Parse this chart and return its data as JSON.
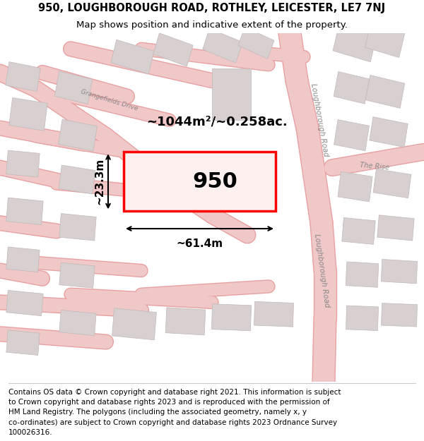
{
  "title_line1": "950, LOUGHBOROUGH ROAD, ROTHLEY, LEICESTER, LE7 7NJ",
  "title_line2": "Map shows position and indicative extent of the property.",
  "footer_text": "Contains OS data © Crown copyright and database right 2021. This information is subject to Crown copyright and database rights 2023 and is reproduced with the permission of HM Land Registry. The polygons (including the associated geometry, namely x, y co-ordinates) are subject to Crown copyright and database rights 2023 Ordnance Survey 100026316.",
  "background_color": "#f5f0f0",
  "map_background": "#faf7f7",
  "road_color": "#f0c8c8",
  "road_border_color": "#e8a0a0",
  "building_fill": "#d8d0d0",
  "building_border": "#c0b8b8",
  "highlight_color": "#ff0000",
  "highlight_fill": "#fff0f0",
  "area_text": "~1044m²/~0.258ac.",
  "width_text": "~61.4m",
  "height_text": "~23.3m",
  "number_text": "950",
  "street_label_loughborough1": "Loughborough Road",
  "street_label_loughborough2": "Loughborough Road",
  "street_label_grangefields": "Grangefields Drive",
  "street_label_the_rise": "The Rise",
  "title_fontsize": 10.5,
  "subtitle_fontsize": 9.5,
  "footer_fontsize": 7.5,
  "label_fontsize": 8.5,
  "area_fontsize": 13,
  "number_fontsize": 22,
  "measure_fontsize": 11
}
